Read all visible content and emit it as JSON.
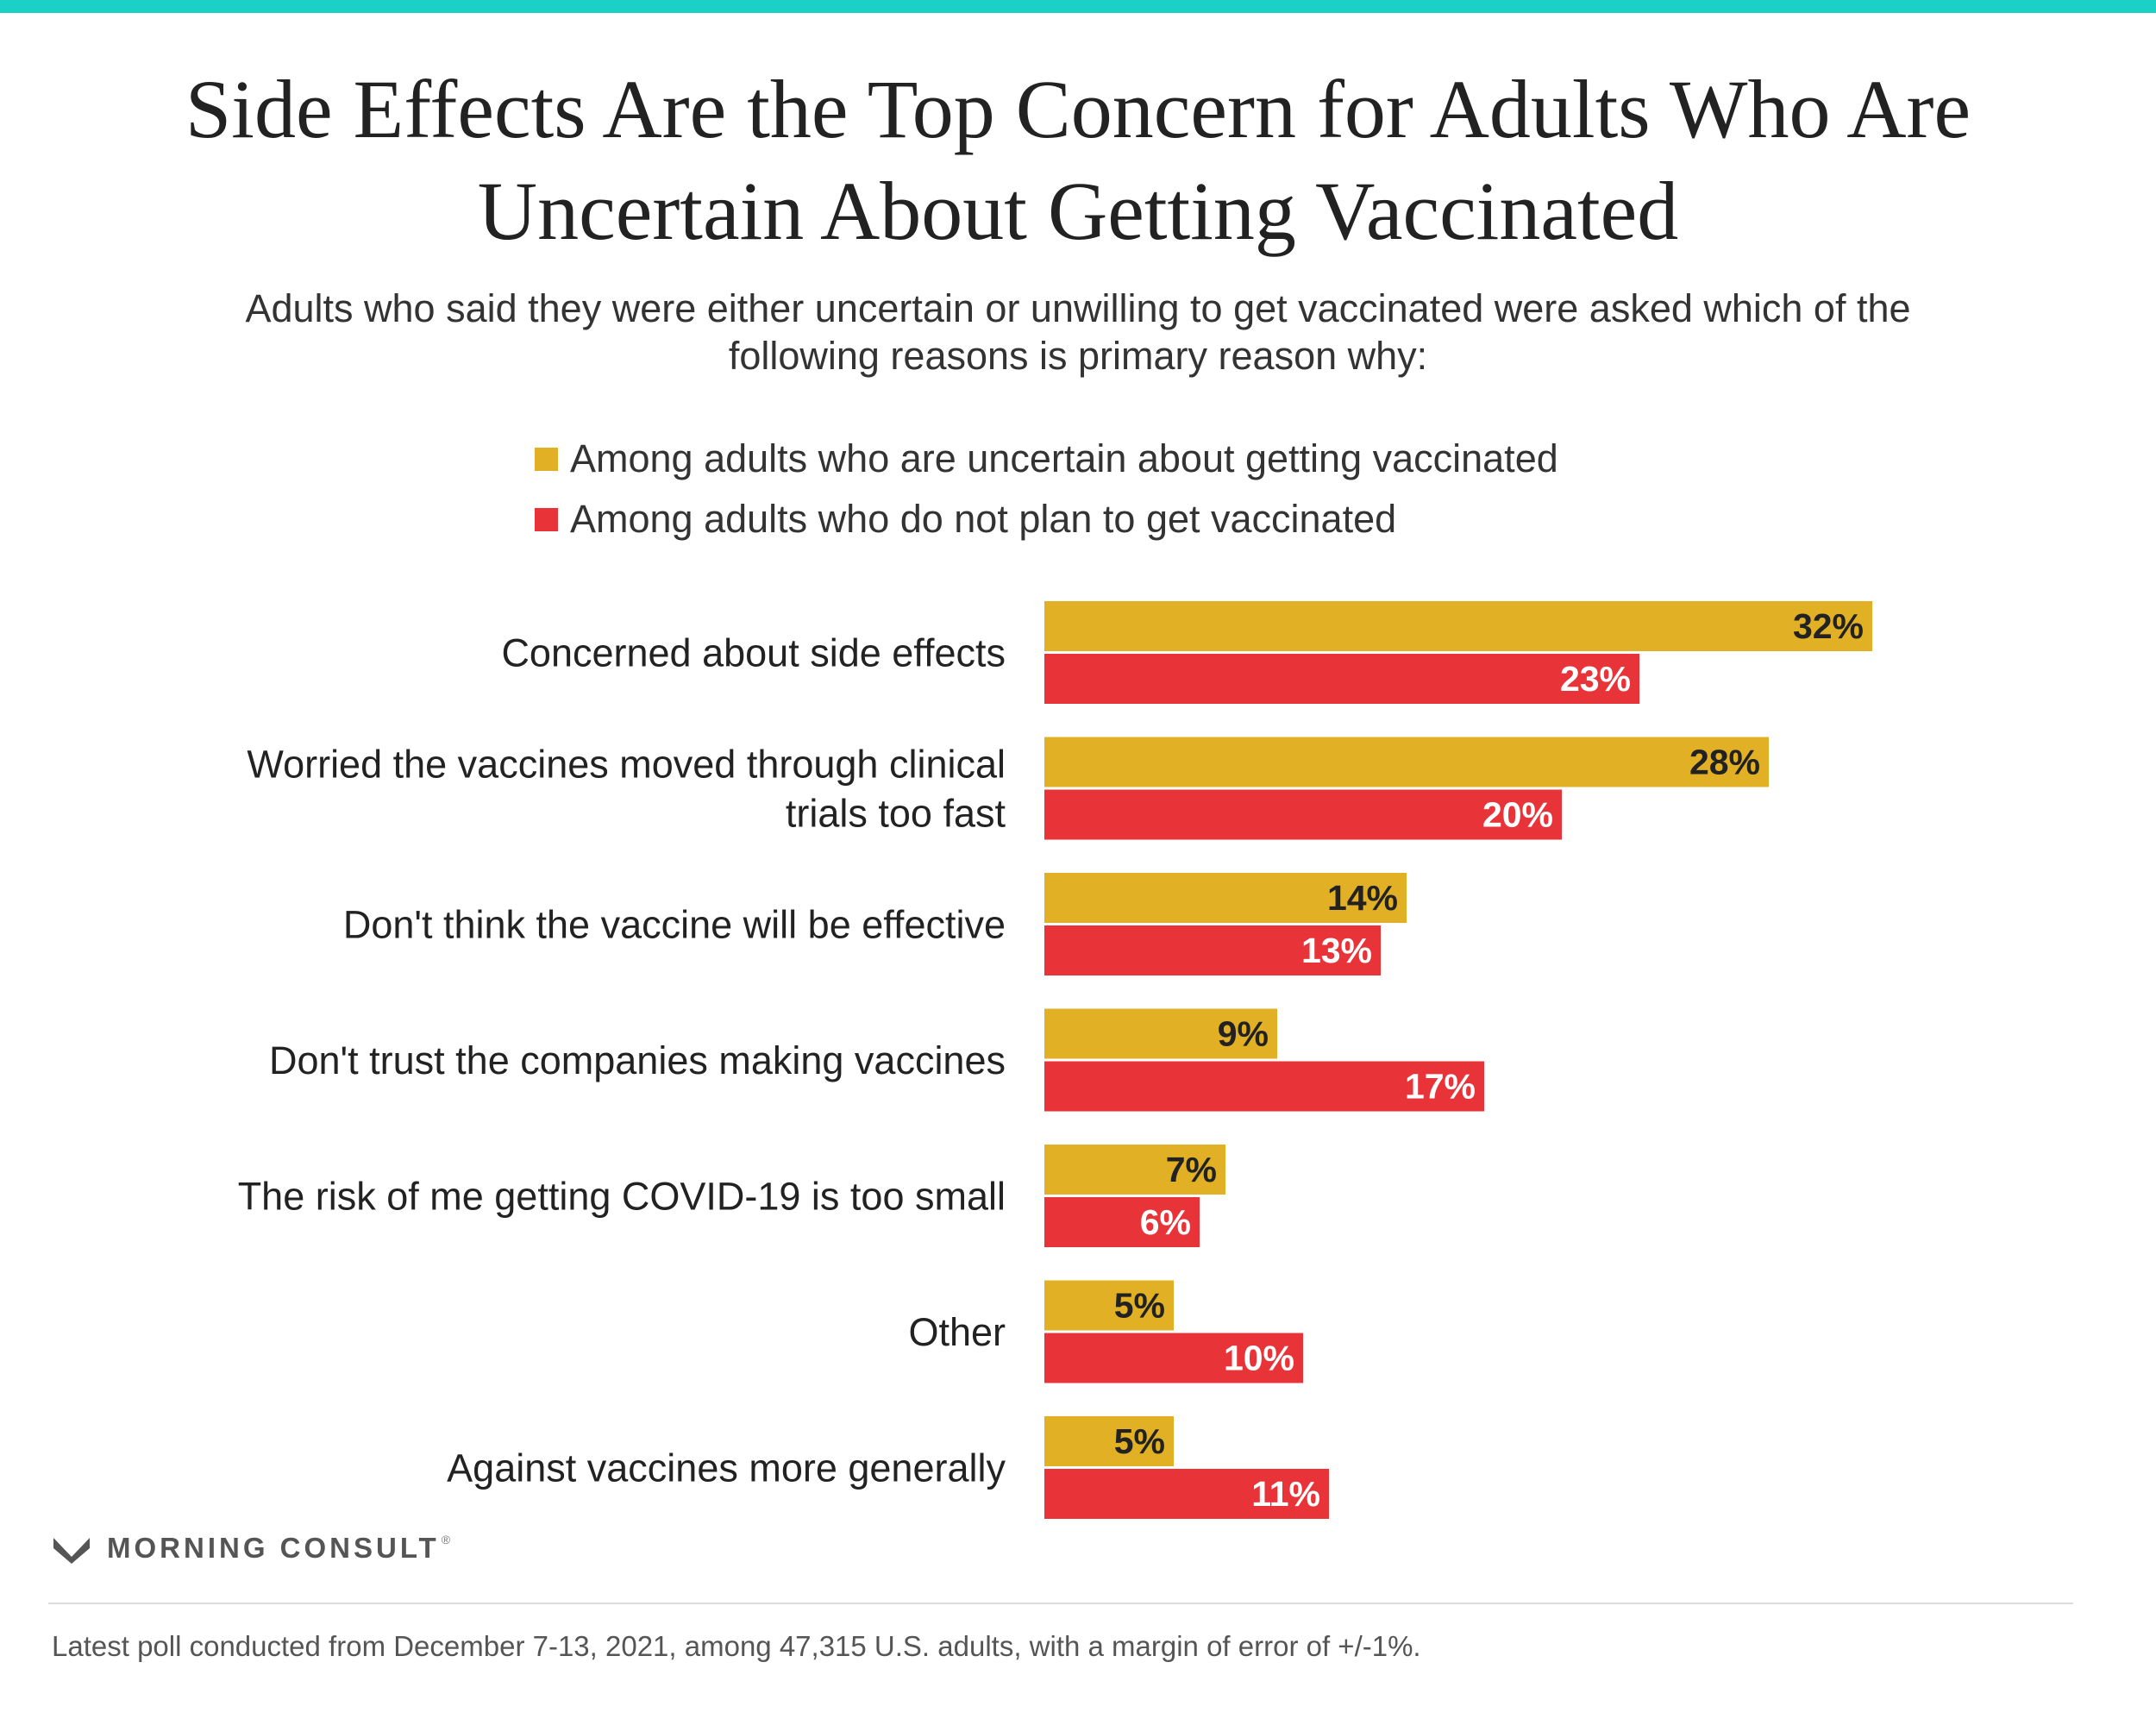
{
  "colors": {
    "top_rule": "#1bd1c6",
    "uncertain": "#e2b025",
    "no_plan": "#e83338",
    "uncertain_label_text": "#222222",
    "no_plan_label_text": "#ffffff"
  },
  "chart_data": {
    "type": "bar",
    "orientation": "horizontal",
    "title": "Side Effects Are the Top Concern for Adults Who Are Uncertain About Getting Vaccinated",
    "subtitle": "Adults who said they were either uncertain or unwilling to get vaccinated were asked which of the following reasons is primary reason why:",
    "categories": [
      "Concerned about side effects",
      "Worried the vaccines moved through clinical trials too fast",
      "Don't think the vaccine will be effective",
      "Don't trust the companies making vaccines",
      "The risk of me getting COVID-19 is too small",
      "Other",
      "Against vaccines more generally"
    ],
    "category_lines": [
      [
        "Concerned about side effects"
      ],
      [
        "Worried the vaccines moved through clinical",
        "trials too fast"
      ],
      [
        "Don't think the vaccine will be effective"
      ],
      [
        "Don't trust the companies making vaccines"
      ],
      [
        "The risk of me getting COVID-19 is too small"
      ],
      [
        "Other"
      ],
      [
        "Against vaccines more generally"
      ]
    ],
    "series": [
      {
        "name": "Among adults who are uncertain about getting vaccinated",
        "values": [
          32,
          28,
          14,
          9,
          7,
          5,
          5
        ],
        "labels": [
          "32%",
          "28%",
          "14%",
          "9%",
          "7%",
          "5%",
          "5%"
        ]
      },
      {
        "name": "Among adults who do not plan to get vaccinated",
        "values": [
          23,
          20,
          13,
          17,
          6,
          10,
          11
        ],
        "labels": [
          "23%",
          "20%",
          "13%",
          "17%",
          "6%",
          "10%",
          "11%"
        ]
      }
    ],
    "value_unit": "%",
    "legend_position": "top",
    "grid": false
  },
  "brand": {
    "name": "MORNING CONSULT",
    "registered_mark": "®"
  },
  "footnote": "Latest poll conducted from December 7-13, 2021, among 47,315 U.S. adults, with a margin of error of +/-1%."
}
